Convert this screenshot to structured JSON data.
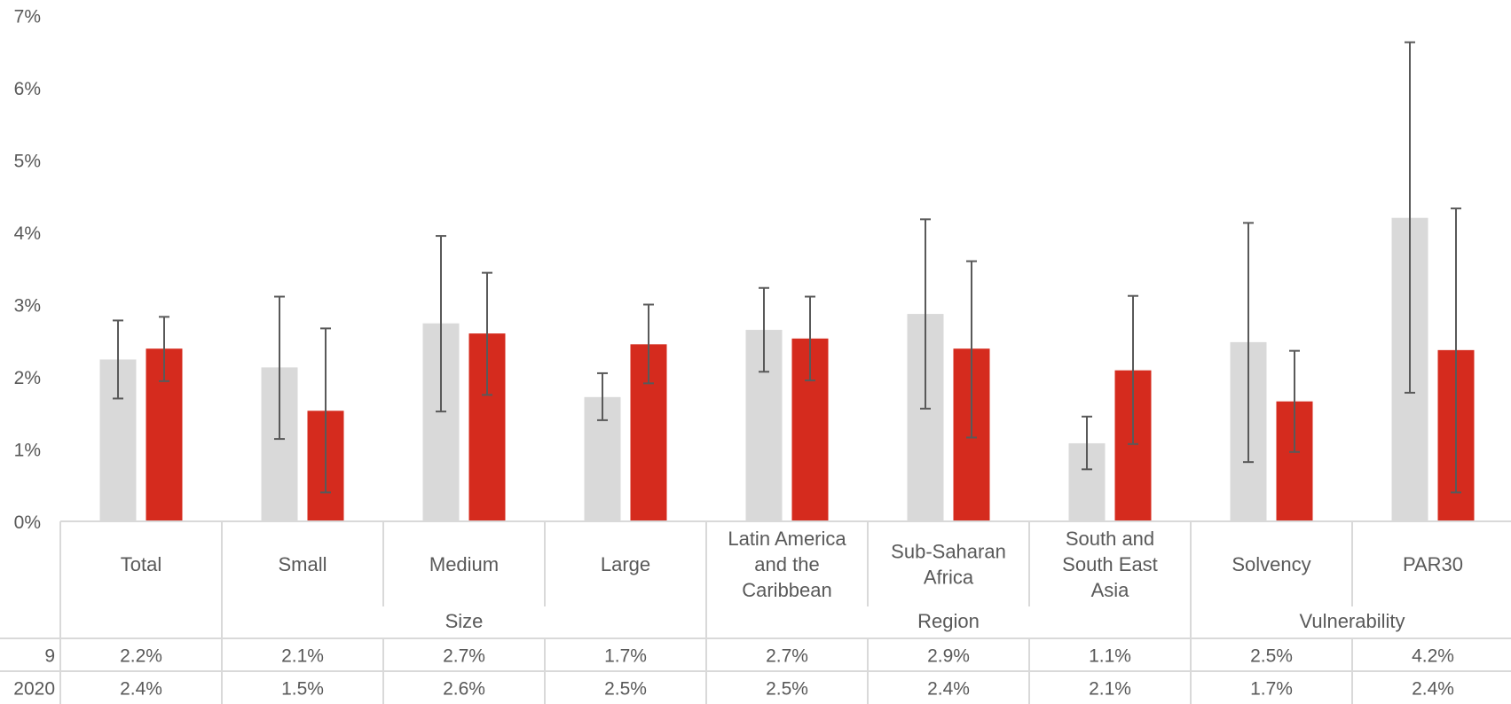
{
  "chart_data": {
    "type": "bar",
    "title": "",
    "xlabel": "",
    "ylabel": "",
    "ylim": [
      0,
      7
    ],
    "yticks": [
      "0%",
      "1%",
      "2%",
      "3%",
      "4%",
      "5%",
      "6%",
      "7%"
    ],
    "y_unit": "%",
    "grid": false,
    "legend": "data-table",
    "categories": [
      {
        "label_lines": [
          "Total"
        ],
        "group": ""
      },
      {
        "label_lines": [
          "Small"
        ],
        "group": "Size"
      },
      {
        "label_lines": [
          "Medium"
        ],
        "group": "Size"
      },
      {
        "label_lines": [
          "Large"
        ],
        "group": "Size"
      },
      {
        "label_lines": [
          "Latin America",
          "and the",
          "Caribbean"
        ],
        "group": "Region"
      },
      {
        "label_lines": [
          "Sub-Saharan",
          "Africa"
        ],
        "group": "Region"
      },
      {
        "label_lines": [
          "South and",
          "South East",
          "Asia"
        ],
        "group": "Region"
      },
      {
        "label_lines": [
          "Solvency"
        ],
        "group": "Vulnerability"
      },
      {
        "label_lines": [
          "PAR30"
        ],
        "group": "Vulnerability"
      }
    ],
    "groups": [
      {
        "label": "",
        "start": 0,
        "count": 1
      },
      {
        "label": "Size",
        "start": 1,
        "count": 3
      },
      {
        "label": "Region",
        "start": 4,
        "count": 3
      },
      {
        "label": "Vulnerability",
        "start": 7,
        "count": 2
      }
    ],
    "series": [
      {
        "name": "9",
        "color": "#d9d9d9",
        "values": [
          2.24,
          2.13,
          2.74,
          1.72,
          2.65,
          2.87,
          1.08,
          2.48,
          4.2
        ],
        "error_low": [
          1.7,
          1.14,
          1.52,
          1.4,
          2.07,
          1.56,
          0.72,
          0.82,
          1.78
        ],
        "error_high": [
          2.78,
          3.11,
          3.95,
          2.05,
          3.23,
          4.18,
          1.45,
          4.13,
          6.63
        ],
        "table_values": [
          "2.2%",
          "2.1%",
          "2.7%",
          "1.7%",
          "2.7%",
          "2.9%",
          "1.1%",
          "2.5%",
          "4.2%"
        ]
      },
      {
        "name": "2020",
        "color": "#d52b1e",
        "values": [
          2.39,
          1.53,
          2.6,
          2.45,
          2.53,
          2.39,
          2.09,
          1.66,
          2.37
        ],
        "error_low": [
          1.94,
          0.4,
          1.75,
          1.91,
          1.95,
          1.16,
          1.07,
          0.96,
          0.4
        ],
        "error_high": [
          2.83,
          2.67,
          3.44,
          3.0,
          3.11,
          3.6,
          3.12,
          2.36,
          4.33
        ],
        "table_values": [
          "2.4%",
          "1.5%",
          "2.6%",
          "2.5%",
          "2.5%",
          "2.4%",
          "2.1%",
          "1.7%",
          "2.4%"
        ]
      }
    ]
  }
}
